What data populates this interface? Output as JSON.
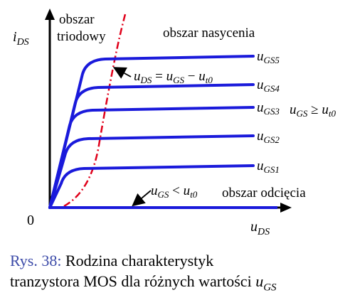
{
  "axes": {
    "y_label": "i",
    "y_label_sub": "DS",
    "x_label": "u",
    "x_label_sub": "DS",
    "origin_label": "0"
  },
  "regions": {
    "triode_line1": "obszar",
    "triode_line2": "triodowy",
    "saturation": "obszar nasycenia",
    "cutoff": "obszar odcięcia"
  },
  "annotations": {
    "boundary": {
      "u1": "u",
      "u1_sub": "DS",
      "eq": " = ",
      "u2": "u",
      "u2_sub": "GS",
      "minus": " − ",
      "u3": "u",
      "u3_sub": "t0"
    },
    "cutoff_condition": {
      "u1": "u",
      "u1_sub": "GS",
      "rel": " < ",
      "u2": "u",
      "u2_sub": "t0"
    },
    "on_condition": {
      "u1": "u",
      "u1_sub": "GS",
      "rel": " ≥ ",
      "u2": "u",
      "u2_sub": "t0"
    }
  },
  "curves": [
    {
      "label": "u",
      "label_sub": "GS5",
      "level": 5
    },
    {
      "label": "u",
      "label_sub": "GS4",
      "level": 4
    },
    {
      "label": "u",
      "label_sub": "GS3",
      "level": 3
    },
    {
      "label": "u",
      "label_sub": "GS2",
      "level": 2
    },
    {
      "label": "u",
      "label_sub": "GS1",
      "level": 1
    }
  ],
  "caption": {
    "label": "Rys. 38:",
    "text_line1": " Rodzina charakterystyk",
    "text_line2": "tranzystora MOS dla różnych wartości ",
    "var": "u",
    "var_sub": "GS"
  },
  "colors": {
    "curve": "#1a1adb",
    "boundary": "#e0001a",
    "axis": "#000000",
    "caption_label": "#3b4aa8"
  }
}
